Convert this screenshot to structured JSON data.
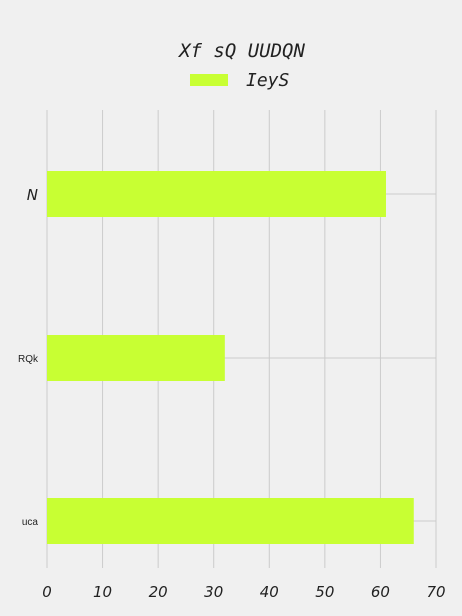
{
  "chart_data": {
    "type": "bar",
    "orientation": "horizontal",
    "title": "Xf sQ UUDQN",
    "categories": [
      "N",
      "RQk",
      "uca"
    ],
    "series": [
      {
        "name": "IeyS",
        "values": [
          61,
          32,
          66
        ],
        "color": "#c8ff33"
      }
    ],
    "xlim": [
      0,
      70
    ],
    "xticks": [
      "0",
      "10",
      "20",
      "30",
      "40",
      "50",
      "60",
      "70"
    ],
    "xlabel": "",
    "ylabel": "",
    "grid": true,
    "legend": "top-center",
    "background": "#f0f0f0"
  }
}
